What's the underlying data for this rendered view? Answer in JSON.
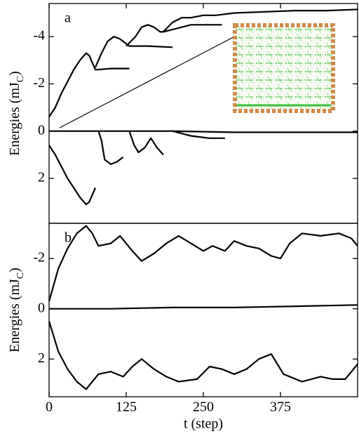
{
  "chart_data": [
    {
      "type": "line",
      "panel_label": "a",
      "ylabel_parts": [
        "Energies (mJ",
        "C",
        ")"
      ],
      "xlim": [
        0,
        500
      ],
      "ylim": [
        -5.4,
        3.9
      ],
      "yticks": [
        -4,
        -2,
        0,
        2
      ],
      "series": [
        {
          "color": "#000000",
          "x": [
            0,
            10,
            20,
            30,
            40,
            50,
            60,
            65,
            70,
            75,
            78
          ],
          "values": [
            -0.6,
            -1.0,
            -1.6,
            -2.1,
            -2.6,
            -3.0,
            -3.3,
            -3.2,
            -2.9,
            -2.6,
            -2.6
          ]
        },
        {
          "color": "#000000",
          "x": [
            78,
            100,
            130
          ],
          "values": [
            -2.6,
            -2.65,
            -2.65
          ]
        },
        {
          "color": "#000000",
          "x": [
            75,
            85,
            95,
            105,
            115,
            125,
            130,
            160,
            200
          ],
          "values": [
            -2.7,
            -3.3,
            -3.8,
            -4.0,
            -3.9,
            -3.7,
            -3.6,
            -3.6,
            -3.55
          ]
        },
        {
          "color": "#000000",
          "x": [
            125,
            140,
            150,
            160,
            170,
            180,
            185,
            230,
            280
          ],
          "values": [
            -3.6,
            -4.0,
            -4.4,
            -4.5,
            -4.4,
            -4.2,
            -4.2,
            -4.5,
            -4.5
          ]
        },
        {
          "color": "#000000",
          "x": [
            185,
            200,
            215,
            230,
            250,
            270,
            300,
            350,
            400,
            450,
            500
          ],
          "values": [
            -4.2,
            -4.6,
            -4.8,
            -4.8,
            -4.9,
            -4.9,
            -5.0,
            -5.05,
            -5.1,
            -5.1,
            -5.15
          ]
        },
        {
          "color": "#000000",
          "x": [
            0,
            100,
            200,
            300,
            400,
            500
          ],
          "values": [
            0.0,
            0.0,
            0.0,
            0.05,
            0.05,
            0.05
          ]
        },
        {
          "color": "#000000",
          "x": [
            0,
            10,
            20,
            30,
            40,
            50,
            60,
            65,
            70,
            75
          ],
          "values": [
            0.6,
            1.0,
            1.5,
            2.0,
            2.4,
            2.8,
            3.1,
            3.0,
            2.7,
            2.4
          ]
        },
        {
          "color": "#000000",
          "x": [
            80,
            85,
            90,
            100,
            110,
            120
          ],
          "values": [
            0.0,
            0.4,
            1.2,
            1.4,
            1.3,
            1.1
          ]
        },
        {
          "color": "#000000",
          "x": [
            130,
            138,
            145,
            155,
            165,
            175,
            185
          ],
          "values": [
            0.0,
            0.6,
            0.9,
            0.7,
            0.3,
            0.7,
            1.0
          ]
        },
        {
          "color": "#000000",
          "x": [
            200,
            230,
            260,
            285
          ],
          "values": [
            0.0,
            0.2,
            0.3,
            0.3
          ]
        }
      ]
    },
    {
      "type": "line",
      "panel_label": "b",
      "ylabel_parts": [
        "Energies (mJ",
        "C",
        ")"
      ],
      "xlabel": "t (step)",
      "xlim": [
        0,
        500
      ],
      "xticks": [
        0,
        125,
        250,
        375
      ],
      "ylim": [
        -3.4,
        3.5
      ],
      "yticks": [
        -2,
        0,
        2
      ],
      "series": [
        {
          "color": "#000000",
          "x": [
            0,
            15,
            30,
            45,
            60,
            70,
            80,
            100,
            115,
            135,
            150,
            170,
            190,
            210,
            230,
            250,
            265,
            285,
            300,
            320,
            340,
            360,
            375,
            390,
            410,
            440,
            470,
            490,
            500
          ],
          "values": [
            -0.3,
            -1.6,
            -2.4,
            -3.0,
            -3.3,
            -3.0,
            -2.5,
            -2.6,
            -2.9,
            -2.3,
            -1.9,
            -2.2,
            -2.6,
            -2.9,
            -2.6,
            -2.3,
            -2.5,
            -2.3,
            -2.7,
            -2.5,
            -2.4,
            -2.1,
            -2.0,
            -2.6,
            -3.0,
            -2.9,
            -3.0,
            -2.8,
            -2.5
          ]
        },
        {
          "color": "#000000",
          "x": [
            0,
            100,
            200,
            300,
            400,
            500
          ],
          "values": [
            0.0,
            0.0,
            -0.05,
            -0.05,
            -0.1,
            -0.15
          ]
        },
        {
          "color": "#000000",
          "x": [
            0,
            15,
            30,
            45,
            60,
            70,
            80,
            100,
            120,
            135,
            150,
            170,
            190,
            210,
            240,
            260,
            280,
            300,
            320,
            340,
            360,
            370,
            380,
            410,
            440,
            460,
            480,
            500
          ],
          "values": [
            0.5,
            1.7,
            2.4,
            2.9,
            3.2,
            2.9,
            2.6,
            2.5,
            2.7,
            2.3,
            2.0,
            2.4,
            2.7,
            2.9,
            2.8,
            2.3,
            2.4,
            2.6,
            2.4,
            2.0,
            1.8,
            2.2,
            2.6,
            2.9,
            2.7,
            2.8,
            2.8,
            2.2
          ]
        }
      ]
    }
  ]
}
